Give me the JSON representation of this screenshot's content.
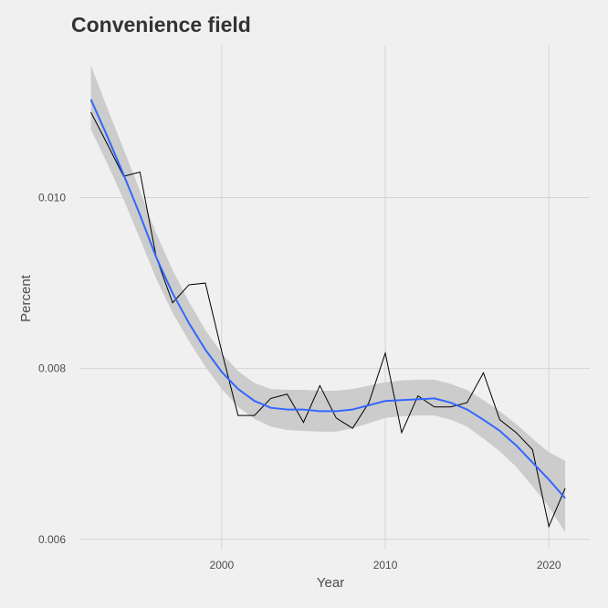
{
  "chart_data": {
    "type": "line",
    "title": "Convenience field",
    "xlabel": "Year",
    "ylabel": "Percent",
    "x_ticks": [
      2000,
      2010,
      2020
    ],
    "y_ticks": [
      0.006,
      0.008,
      0.01
    ],
    "y_tick_labels": [
      "0.006",
      "0.008",
      "0.010"
    ],
    "xlim": [
      1991.3,
      2022.5
    ],
    "ylim": [
      0.00588,
      0.01178
    ],
    "grid": true,
    "series": [
      {
        "kind": "observed",
        "color": "#000000",
        "x": [
          1992,
          1993,
          1994,
          1995,
          1996,
          1997,
          1998,
          1999,
          2000,
          2001,
          2002,
          2003,
          2004,
          2005,
          2006,
          2007,
          2008,
          2009,
          2010,
          2011,
          2012,
          2013,
          2014,
          2015,
          2016,
          2017,
          2018,
          2019,
          2020,
          2021
        ],
        "y": [
          0.011,
          0.01063,
          0.01025,
          0.0103,
          0.0093,
          0.00877,
          0.00898,
          0.009,
          0.0082,
          0.00745,
          0.00745,
          0.00765,
          0.0077,
          0.00737,
          0.0078,
          0.00742,
          0.0073,
          0.0076,
          0.00818,
          0.00725,
          0.00768,
          0.00755,
          0.00755,
          0.0076,
          0.00795,
          0.0074,
          0.00725,
          0.00705,
          0.00615,
          0.0066
        ]
      },
      {
        "kind": "smooth",
        "color": "#3366ff",
        "band_color": "#cccccc",
        "x": [
          1992,
          1993,
          1994,
          1995,
          1996,
          1997,
          1998,
          1999,
          2000,
          2001,
          2002,
          2003,
          2004,
          2005,
          2006,
          2007,
          2008,
          2009,
          2010,
          2011,
          2012,
          2013,
          2014,
          2015,
          2016,
          2017,
          2018,
          2019,
          2020,
          2021
        ],
        "y": [
          0.01115,
          0.01072,
          0.01027,
          0.0098,
          0.0093,
          0.00888,
          0.00853,
          0.00822,
          0.00796,
          0.00776,
          0.00762,
          0.00754,
          0.00752,
          0.00752,
          0.0075,
          0.0075,
          0.00752,
          0.00757,
          0.00762,
          0.00763,
          0.00764,
          0.00765,
          0.0076,
          0.00752,
          0.0074,
          0.00727,
          0.0071,
          0.0069,
          0.0067,
          0.00648
        ],
        "lower": [
          0.0108,
          0.0104,
          0.00998,
          0.00952,
          0.00905,
          0.00865,
          0.00832,
          0.00802,
          0.00776,
          0.00755,
          0.00741,
          0.00732,
          0.00728,
          0.00727,
          0.00726,
          0.00726,
          0.0073,
          0.00736,
          0.00742,
          0.00744,
          0.00745,
          0.00745,
          0.0074,
          0.00732,
          0.00718,
          0.00703,
          0.00685,
          0.00662,
          0.00638,
          0.00608
        ],
        "upper": [
          0.01155,
          0.01105,
          0.01057,
          0.01008,
          0.00958,
          0.00915,
          0.00878,
          0.00845,
          0.00818,
          0.00797,
          0.00783,
          0.00776,
          0.00775,
          0.00775,
          0.00774,
          0.00774,
          0.00776,
          0.0078,
          0.00784,
          0.00786,
          0.00787,
          0.00787,
          0.00782,
          0.00775,
          0.00763,
          0.0075,
          0.00735,
          0.00718,
          0.00702,
          0.00692
        ]
      }
    ]
  }
}
